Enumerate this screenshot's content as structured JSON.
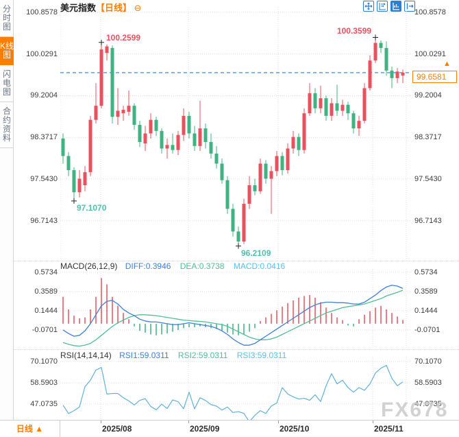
{
  "header": {
    "title": "美元指数",
    "period_tag": "【日线】",
    "collapse_glyph": "⊖"
  },
  "sidebar": {
    "tabs": [
      {
        "label": "分时图",
        "active": false
      },
      {
        "label": "K线图",
        "active": true
      },
      {
        "label": "闪电图",
        "active": false
      },
      {
        "label": "合约资料",
        "active": false
      }
    ]
  },
  "toolbar": {
    "buttons": [
      {
        "name": "move-tool-button",
        "active": false
      },
      {
        "name": "zoom-fit-tool-button",
        "active": false
      },
      {
        "name": "axis-scale-tool-button",
        "active": true
      },
      {
        "name": "pan-right-tool-button",
        "active": false
      }
    ]
  },
  "price_tag": {
    "value": "99.6581",
    "arrow": "▲"
  },
  "footer": {
    "period_label": "日线 ▲",
    "months": [
      "2025/08",
      "2025/09",
      "2025/10",
      "2025/11"
    ]
  },
  "watermark": "FX678",
  "colors": {
    "up": "#e8515d",
    "down": "#3eb381",
    "accent_orange": "#ff7d00",
    "dashed_line": "#1f7ce8",
    "diff_line": "#3f7fd6",
    "dea_line": "#4fbd9a",
    "rsi_line": "#5fb2d9",
    "grid": "#dcdcdc",
    "annotation_high": "#e8515d",
    "annotation_low": "#4fc0ad",
    "marker": "#222222",
    "toolbar_blue": "#2a7fd4"
  },
  "chart_data": [
    {
      "type": "candlestick",
      "title": "美元指数【日线】",
      "y_ticks": [
        100.8578,
        100.0291,
        99.2004,
        98.3717,
        97.543,
        96.7143
      ],
      "y_tick_labels": [
        "100.8578",
        "100.0291",
        "99.2004",
        "98.3717",
        "97.5430",
        "96.7143"
      ],
      "x_tick_labels": [
        "2025/08",
        "2025/09",
        "2025/10",
        "2025/11"
      ],
      "current_price": 99.6581,
      "annotations": [
        {
          "text": "100.2599",
          "type": "high",
          "candle": 8,
          "side": "right"
        },
        {
          "text": "100.3599",
          "type": "high",
          "candle": 58,
          "side": "left"
        },
        {
          "text": "97.1070",
          "type": "low",
          "candle": 3,
          "side": "right"
        },
        {
          "text": "96.2109",
          "type": "low",
          "candle": 33,
          "side": "right"
        }
      ],
      "candles": [
        [
          98.35,
          98.45,
          97.85,
          98.0
        ],
        [
          98.0,
          98.08,
          97.6,
          97.72
        ],
        [
          97.72,
          97.78,
          97.107,
          97.28
        ],
        [
          97.28,
          97.72,
          97.18,
          97.55
        ],
        [
          97.42,
          97.8,
          97.3,
          97.68
        ],
        [
          97.68,
          98.8,
          97.6,
          98.72
        ],
        [
          98.72,
          99.45,
          98.65,
          99.0
        ],
        [
          99.0,
          100.2599,
          98.95,
          100.12
        ],
        [
          100.05,
          100.22,
          99.9,
          100.18
        ],
        [
          100.15,
          100.2,
          98.65,
          98.78
        ],
        [
          98.78,
          99.35,
          98.62,
          98.9
        ],
        [
          98.85,
          99.0,
          98.7,
          98.92
        ],
        [
          98.88,
          99.3,
          98.8,
          99.0
        ],
        [
          99.0,
          99.05,
          98.52,
          98.62
        ],
        [
          98.62,
          98.7,
          98.18,
          98.28
        ],
        [
          98.25,
          98.6,
          98.1,
          98.45
        ],
        [
          98.45,
          98.85,
          98.35,
          98.72
        ],
        [
          98.72,
          98.78,
          98.4,
          98.5
        ],
        [
          98.5,
          98.55,
          98.05,
          98.15
        ],
        [
          98.15,
          98.35,
          97.95,
          98.22
        ],
        [
          98.22,
          98.45,
          98.05,
          98.12
        ],
        [
          98.12,
          98.5,
          98.02,
          98.42
        ],
        [
          98.42,
          98.95,
          98.3,
          98.8
        ],
        [
          98.8,
          98.88,
          98.35,
          98.45
        ],
        [
          98.45,
          98.6,
          98.1,
          98.2
        ],
        [
          98.2,
          99.1,
          98.1,
          98.55
        ],
        [
          98.55,
          98.65,
          98.15,
          98.28
        ],
        [
          98.28,
          98.45,
          97.95,
          98.05
        ],
        [
          98.05,
          98.2,
          97.75,
          97.85
        ],
        [
          97.85,
          97.95,
          97.45,
          97.52
        ],
        [
          97.52,
          97.6,
          96.85,
          96.95
        ],
        [
          96.95,
          97.05,
          96.4,
          96.5
        ],
        [
          96.5,
          96.6,
          96.2109,
          96.3
        ],
        [
          96.3,
          97.15,
          96.25,
          97.05
        ],
        [
          97.05,
          97.6,
          96.95,
          97.42
        ],
        [
          97.42,
          97.55,
          97.22,
          97.3
        ],
        [
          97.3,
          97.95,
          97.25,
          97.85
        ],
        [
          97.85,
          97.92,
          97.45,
          97.55
        ],
        [
          97.55,
          97.8,
          96.85,
          97.7
        ],
        [
          97.7,
          98.1,
          97.6,
          98.0
        ],
        [
          98.0,
          98.08,
          97.62,
          97.72
        ],
        [
          97.72,
          98.25,
          97.65,
          98.15
        ],
        [
          98.15,
          98.5,
          98.05,
          98.38
        ],
        [
          98.38,
          98.45,
          98.0,
          98.12
        ],
        [
          98.12,
          98.95,
          98.05,
          98.85
        ],
        [
          98.85,
          99.45,
          98.8,
          99.25
        ],
        [
          99.25,
          99.35,
          98.85,
          98.95
        ],
        [
          98.95,
          99.4,
          98.85,
          99.15
        ],
        [
          99.15,
          99.2,
          98.7,
          98.8
        ],
        [
          98.8,
          99.15,
          98.7,
          99.05
        ],
        [
          99.05,
          99.42,
          98.8,
          98.9
        ],
        [
          98.9,
          99.12,
          98.8,
          99.02
        ],
        [
          99.02,
          99.08,
          98.72,
          98.85
        ],
        [
          98.85,
          98.9,
          98.45,
          98.55
        ],
        [
          98.55,
          98.8,
          98.4,
          98.7
        ],
        [
          98.7,
          99.45,
          98.65,
          99.35
        ],
        [
          99.35,
          100.0,
          99.3,
          99.9
        ],
        [
          99.9,
          100.3599,
          99.85,
          100.25
        ],
        [
          100.25,
          100.3,
          100.05,
          100.15
        ],
        [
          100.15,
          100.28,
          99.6,
          99.7
        ],
        [
          99.7,
          99.78,
          99.35,
          99.55
        ],
        [
          99.55,
          99.75,
          99.45,
          99.68
        ],
        [
          99.6,
          99.72,
          99.45,
          99.6581
        ]
      ]
    },
    {
      "type": "macd",
      "title": "MACD(26,12,9)",
      "diff_label": "DIFF:0.3946",
      "dea_label": "DEA:0.3738",
      "macd_label": "MACD:0.0416",
      "diff_value": 0.3946,
      "dea_value": 0.3738,
      "macd_value": 0.0416,
      "y_ticks": [
        0.5734,
        0.3589,
        0.1444,
        -0.0701
      ],
      "y_tick_labels": [
        "0.5734",
        "0.3589",
        "0.1444",
        "-0.0701"
      ],
      "hist": [
        0.3,
        0.16,
        0.09,
        0.06,
        0.07,
        0.16,
        0.3,
        0.51,
        0.44,
        0.3,
        0.2,
        0.12,
        0.05,
        -0.03,
        -0.08,
        -0.1,
        -0.12,
        -0.13,
        -0.12,
        -0.11,
        -0.09,
        -0.07,
        -0.05,
        -0.04,
        -0.04,
        -0.03,
        -0.04,
        -0.05,
        -0.06,
        -0.08,
        -0.1,
        -0.12,
        -0.13,
        -0.12,
        -0.09,
        -0.05,
        0.03,
        0.07,
        0.11,
        0.15,
        0.19,
        0.23,
        0.26,
        0.29,
        0.31,
        0.32,
        0.29,
        0.24,
        0.18,
        0.12,
        0.07,
        0.04,
        -0.02,
        -0.03,
        0.05,
        0.1,
        0.14,
        0.18,
        0.2,
        0.16,
        0.12,
        0.08,
        0.0416
      ],
      "diff": [
        -0.07,
        -0.11,
        -0.14,
        -0.13,
        -0.08,
        0.0,
        0.1,
        0.2,
        0.25,
        0.26,
        0.22,
        0.16,
        0.12,
        0.09,
        0.05,
        0.03,
        0.02,
        0.02,
        0.01,
        0.0,
        -0.01,
        -0.01,
        0.0,
        0.01,
        0.0,
        -0.01,
        -0.02,
        -0.03,
        -0.05,
        -0.08,
        -0.12,
        -0.17,
        -0.21,
        -0.24,
        -0.24,
        -0.22,
        -0.18,
        -0.14,
        -0.1,
        -0.06,
        -0.02,
        0.02,
        0.06,
        0.1,
        0.14,
        0.18,
        0.21,
        0.23,
        0.24,
        0.24,
        0.235,
        0.235,
        0.23,
        0.22,
        0.22,
        0.24,
        0.28,
        0.32,
        0.37,
        0.41,
        0.43,
        0.42,
        0.3946
      ],
      "dea": [
        -0.21,
        -0.23,
        -0.245,
        -0.25,
        -0.24,
        -0.22,
        -0.18,
        -0.13,
        -0.08,
        -0.03,
        0.01,
        0.04,
        0.07,
        0.09,
        0.1,
        0.1,
        0.095,
        0.09,
        0.08,
        0.07,
        0.06,
        0.05,
        0.04,
        0.035,
        0.03,
        0.025,
        0.02,
        0.01,
        0.0,
        -0.01,
        -0.03,
        -0.06,
        -0.09,
        -0.12,
        -0.15,
        -0.17,
        -0.18,
        -0.18,
        -0.17,
        -0.15,
        -0.12,
        -0.09,
        -0.06,
        -0.03,
        0.0,
        0.03,
        0.06,
        0.09,
        0.12,
        0.14,
        0.16,
        0.18,
        0.19,
        0.2,
        0.21,
        0.22,
        0.24,
        0.26,
        0.28,
        0.31,
        0.33,
        0.35,
        0.3738
      ]
    },
    {
      "type": "line",
      "title": "RSI(14,14,14)",
      "rsi1_label": "RSI1:59.0311",
      "rsi2_label": "RSI2:59.0311",
      "rsi3_label": "RSI3:59.0311",
      "rsi1_value": 59.0311,
      "rsi2_value": 59.0311,
      "rsi3_value": 59.0311,
      "y_ticks": [
        70.107,
        58.5903,
        47.0735
      ],
      "y_tick_labels": [
        "70.1070",
        "58.5903",
        "47.0735"
      ],
      "values": [
        46.5,
        42.0,
        43.5,
        45.5,
        56.5,
        60.0,
        65.5,
        66.9,
        52.5,
        52.8,
        52.8,
        50.5,
        48.8,
        46.6,
        49.1,
        50.0,
        45.8,
        44.0,
        47.0,
        44.7,
        49.3,
        48.4,
        44.5,
        53.5,
        44.5,
        50.5,
        49.0,
        46.8,
        46.0,
        43.8,
        45.5,
        42.5,
        43.0,
        42.0,
        37.5,
        41.0,
        43.5,
        42.0,
        46.0,
        47.7,
        56.0,
        52.5,
        51.0,
        49.8,
        50.2,
        49.1,
        52.1,
        48.4,
        57.0,
        63.5,
        58.0,
        60.0,
        56.0,
        53.5,
        56.0,
        54.5,
        58.0,
        63.9,
        66.5,
        68.0,
        61.0,
        57.0,
        59.03
      ]
    }
  ]
}
